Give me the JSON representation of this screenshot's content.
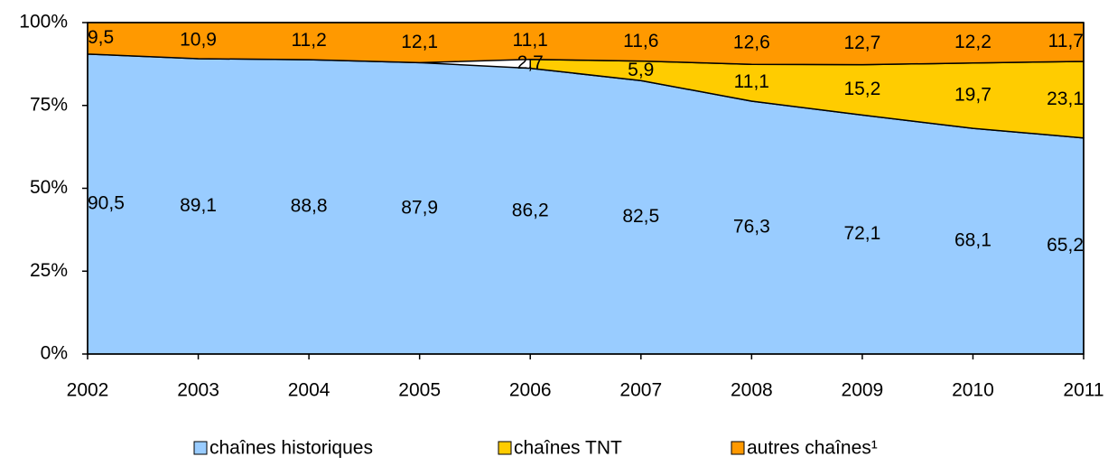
{
  "chart_data": {
    "type": "stacked-area",
    "x": [
      2002,
      2003,
      2004,
      2005,
      2006,
      2007,
      2008,
      2009,
      2010,
      2011
    ],
    "xlim": [
      2002,
      2011
    ],
    "xticks": [
      2002,
      2003,
      2004,
      2005,
      2006,
      2007,
      2008,
      2009,
      2010,
      2011
    ],
    "ylim": [
      0,
      100
    ],
    "yticks": [
      {
        "value": 0,
        "label": "0%"
      },
      {
        "value": 25,
        "label": "25%"
      },
      {
        "value": 50,
        "label": "50%"
      },
      {
        "value": 75,
        "label": "75%"
      },
      {
        "value": 100,
        "label": "100%"
      }
    ],
    "legend": "bottom",
    "series": [
      {
        "name": "chaînes historiques",
        "color": "#99ccff",
        "values": [
          90.5,
          89.1,
          88.8,
          87.9,
          86.2,
          82.5,
          76.3,
          72.1,
          68.1,
          65.2
        ],
        "value_labels": [
          "90,5",
          "89,1",
          "88,8",
          "87,9",
          "86,2",
          "82,5",
          "76,3",
          "72,1",
          "68,1",
          "65,2"
        ]
      },
      {
        "name": "chaînes TNT",
        "color": "#ffcc00",
        "values": [
          null,
          null,
          null,
          null,
          2.7,
          5.9,
          11.1,
          15.2,
          19.7,
          23.1
        ],
        "value_labels": [
          null,
          null,
          null,
          null,
          "2,7",
          "5,9",
          "11,1",
          "15,2",
          "19,7",
          "23,1"
        ]
      },
      {
        "name": "autres chaînes¹",
        "color": "#ff9900",
        "values": [
          9.5,
          10.9,
          11.2,
          12.1,
          11.1,
          11.6,
          12.6,
          12.7,
          12.2,
          11.7
        ],
        "value_labels": [
          "9,5",
          "10,9",
          "11,2",
          "12,1",
          "11,1",
          "11,6",
          "12,6",
          "12,7",
          "12,2",
          "11,7"
        ]
      }
    ]
  }
}
